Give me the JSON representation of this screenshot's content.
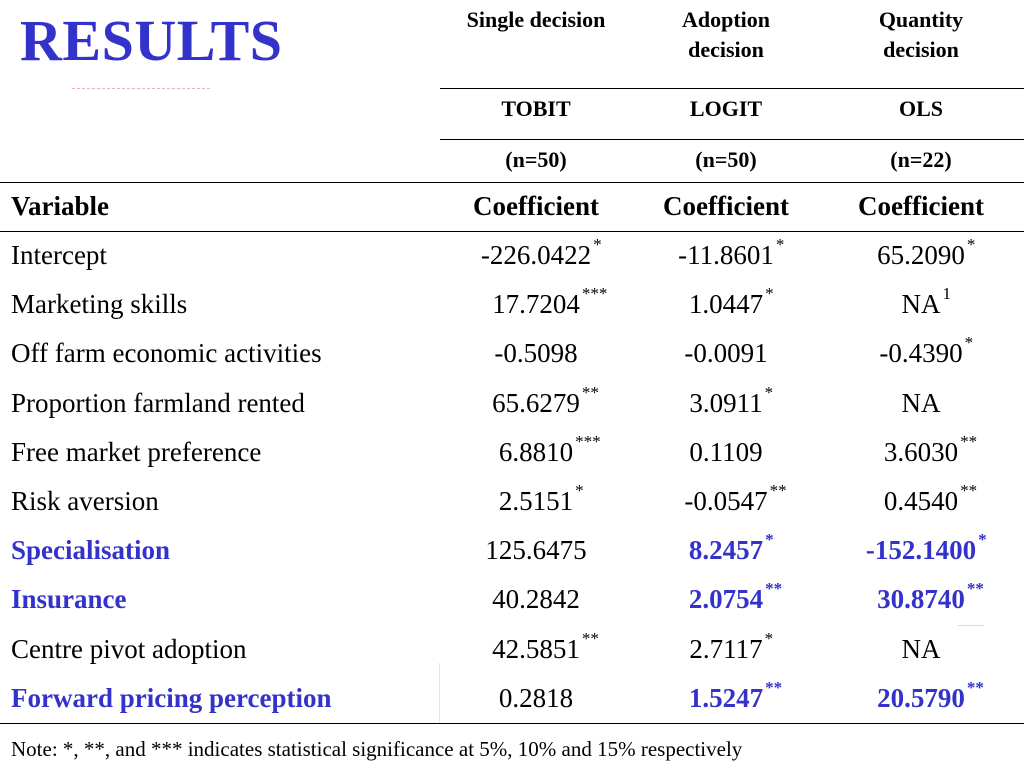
{
  "title": "RESULTS",
  "columns": [
    {
      "decision": "Single decision",
      "method": "TOBIT",
      "n": "(n=50)",
      "coef_label": "Coefficient"
    },
    {
      "decision": "Adoption decision",
      "method": "LOGIT",
      "n": "(n=50)",
      "coef_label": "Coefficient"
    },
    {
      "decision": "Quantity decision",
      "method": "OLS",
      "n": "(n=22)",
      "coef_label": "Coefficient"
    }
  ],
  "header": {
    "col1_line1": "Single decision",
    "col2_line1": "Adoption",
    "col2_line2": "decision",
    "col3_line1": "Quantity",
    "col3_line2": "decision"
  },
  "variable_label": "Variable",
  "rows": [
    {
      "variable": "Intercept",
      "highlight": false,
      "values": [
        {
          "v": "-226.0422",
          "sig": "*",
          "hl": false
        },
        {
          "v": "-11.8601",
          "sig": "*",
          "hl": false
        },
        {
          "v": "65.2090",
          "sig": "*",
          "hl": false
        }
      ]
    },
    {
      "variable": "Marketing skills",
      "highlight": false,
      "values": [
        {
          "v": "17.7204",
          "sig": "***",
          "hl": false
        },
        {
          "v": "1.0447",
          "sig": "*",
          "hl": false
        },
        {
          "v": "NA",
          "sig": "1",
          "hl": false
        }
      ]
    },
    {
      "variable": "Off farm economic activities",
      "highlight": false,
      "values": [
        {
          "v": "-0.5098",
          "sig": "",
          "hl": false
        },
        {
          "v": "-0.0091",
          "sig": "",
          "hl": false
        },
        {
          "v": "-0.4390",
          "sig": "*",
          "hl": false
        }
      ]
    },
    {
      "variable": "Proportion farmland rented",
      "highlight": false,
      "values": [
        {
          "v": "65.6279",
          "sig": "**",
          "hl": false
        },
        {
          "v": "3.0911",
          "sig": "*",
          "hl": false
        },
        {
          "v": "NA",
          "sig": "",
          "hl": false
        }
      ]
    },
    {
      "variable": "Free market preference",
      "highlight": false,
      "values": [
        {
          "v": "6.8810",
          "sig": "***",
          "hl": false
        },
        {
          "v": "0.1109",
          "sig": "",
          "hl": false
        },
        {
          "v": "3.6030",
          "sig": "**",
          "hl": false
        }
      ]
    },
    {
      "variable": "Risk aversion",
      "highlight": false,
      "values": [
        {
          "v": "2.5151",
          "sig": "*",
          "hl": false
        },
        {
          "v": "-0.0547",
          "sig": "**",
          "hl": false
        },
        {
          "v": "0.4540",
          "sig": "**",
          "hl": false
        }
      ]
    },
    {
      "variable": "Specialisation",
      "highlight": true,
      "values": [
        {
          "v": "125.6475",
          "sig": "",
          "hl": false
        },
        {
          "v": "8.2457",
          "sig": "*",
          "hl": true
        },
        {
          "v": "-152.1400",
          "sig": "*",
          "hl": true
        }
      ]
    },
    {
      "variable": "Insurance",
      "highlight": true,
      "values": [
        {
          "v": "40.2842",
          "sig": "",
          "hl": false
        },
        {
          "v": "2.0754",
          "sig": "**",
          "hl": true
        },
        {
          "v": "30.8740",
          "sig": "**",
          "hl": true
        }
      ]
    },
    {
      "variable": "Centre pivot adoption",
      "highlight": false,
      "values": [
        {
          "v": "42.5851",
          "sig": "**",
          "hl": false
        },
        {
          "v": "2.7117",
          "sig": "*",
          "hl": false
        },
        {
          "v": "NA",
          "sig": "",
          "hl": false
        }
      ]
    },
    {
      "variable": "Forward pricing perception",
      "highlight": true,
      "values": [
        {
          "v": "0.2818",
          "sig": "",
          "hl": false
        },
        {
          "v": "1.5247",
          "sig": "**",
          "hl": true
        },
        {
          "v": "20.5790",
          "sig": "**",
          "hl": true
        }
      ]
    }
  ],
  "note": "Note: *, **, and *** indicates statistical significance at 5%, 10% and 15% respectively",
  "colors": {
    "title": "#3333cc",
    "highlight": "#3333cc",
    "text": "#000000",
    "background": "#ffffff"
  }
}
